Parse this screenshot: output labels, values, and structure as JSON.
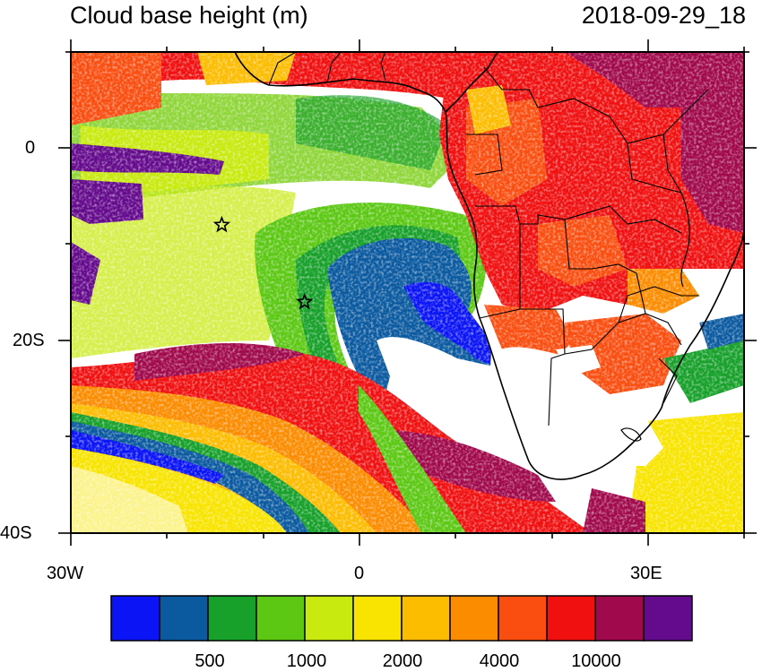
{
  "title": {
    "variable": "Cloud base height (m)",
    "datetime": "2018-09-29_18"
  },
  "axes": {
    "lat_labels": [
      "0",
      "20S",
      "40S"
    ],
    "lon_labels": [
      "30W",
      "0",
      "30E"
    ]
  },
  "colorbar": {
    "colors": [
      "#0a14f5",
      "#0b5aa0",
      "#17a02a",
      "#5cc814",
      "#c8ea0f",
      "#f8e400",
      "#fcbc00",
      "#fb8c00",
      "#f94e10",
      "#f01010",
      "#a0094b",
      "#640a8c"
    ],
    "labels": [
      "500",
      "1000",
      "2000",
      "4000",
      "10000"
    ]
  },
  "markers": [
    {
      "name": "star-marker-1",
      "lon": -14.3,
      "lat": -8
    },
    {
      "name": "star-marker-2",
      "lon": -5.7,
      "lat": -16
    }
  ]
}
